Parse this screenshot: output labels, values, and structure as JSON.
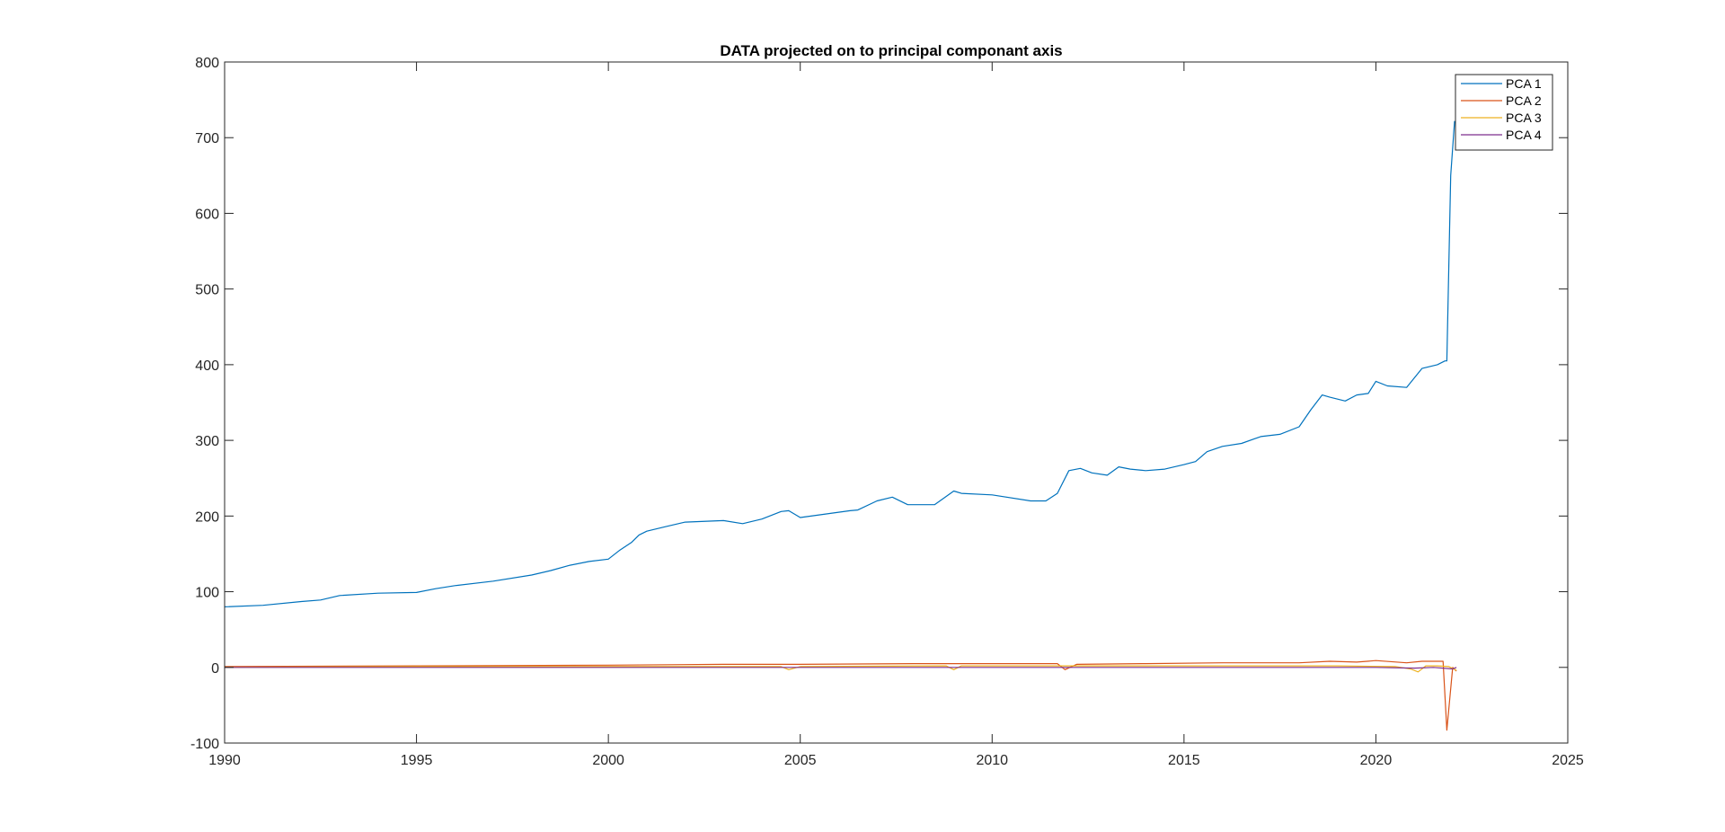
{
  "chart_data": {
    "type": "line",
    "title": "DATA projected on to principal componant axis",
    "xlabel": "",
    "ylabel": "",
    "xlim": [
      1990,
      2025
    ],
    "ylim": [
      -100,
      800
    ],
    "xticks": [
      1990,
      1995,
      2000,
      2005,
      2010,
      2015,
      2020,
      2025
    ],
    "yticks": [
      -100,
      0,
      100,
      200,
      300,
      400,
      500,
      600,
      700,
      800
    ],
    "xtick_labels": [
      "1990",
      "1995",
      "2000",
      "2005",
      "2010",
      "2015",
      "2020",
      "2025"
    ],
    "ytick_labels": [
      "-100",
      "0",
      "100",
      "200",
      "300",
      "400",
      "500",
      "600",
      "700",
      "800"
    ],
    "grid": false,
    "legend_position": "top-right",
    "series": [
      {
        "name": "PCA 1",
        "color": "#0072BD",
        "x": [
          1990.0,
          1991.0,
          1992.0,
          1992.5,
          1993.0,
          1994.0,
          1995.0,
          1995.5,
          1996.0,
          1997.0,
          1998.0,
          1998.5,
          1999.0,
          1999.5,
          2000.0,
          2000.3,
          2000.6,
          2000.8,
          2001.0,
          2001.5,
          2002.0,
          2003.0,
          2003.5,
          2004.0,
          2004.5,
          2004.7,
          2005.0,
          2006.0,
          2006.3,
          2006.5,
          2007.0,
          2007.4,
          2007.8,
          2008.5,
          2009.0,
          2009.2,
          2010.0,
          2011.0,
          2011.4,
          2011.7,
          2012.0,
          2012.3,
          2012.6,
          2013.0,
          2013.3,
          2013.6,
          2014.0,
          2014.5,
          2015.0,
          2015.3,
          2015.6,
          2016.0,
          2016.5,
          2017.0,
          2017.5,
          2018.0,
          2018.3,
          2018.6,
          2018.8,
          2019.2,
          2019.5,
          2019.8,
          2020.0,
          2020.3,
          2020.8,
          2021.2,
          2021.6,
          2021.8,
          2021.85,
          2021.95,
          2022.05
        ],
        "values": [
          80,
          82,
          87,
          89,
          95,
          98,
          99,
          104,
          108,
          114,
          122,
          128,
          135,
          140,
          143,
          155,
          165,
          175,
          180,
          186,
          192,
          194,
          190,
          196,
          206,
          207,
          198,
          205,
          207,
          208,
          220,
          225,
          215,
          215,
          233,
          230,
          228,
          220,
          220,
          230,
          260,
          263,
          257,
          254,
          265,
          262,
          260,
          262,
          268,
          272,
          285,
          292,
          296,
          305,
          308,
          318,
          340,
          360,
          357,
          352,
          360,
          362,
          378,
          372,
          370,
          395,
          400,
          405,
          405,
          650,
          722
        ]
      },
      {
        "name": "PCA 2",
        "color": "#D95319",
        "x": [
          1990.0,
          1995.0,
          2000.0,
          2003.0,
          2005.0,
          2008.0,
          2010.0,
          2011.7,
          2011.9,
          2012.2,
          2014.0,
          2016.0,
          2018.0,
          2018.8,
          2019.5,
          2020.0,
          2020.8,
          2021.2,
          2021.6,
          2021.75,
          2021.85,
          2022.0,
          2022.1
        ],
        "values": [
          1,
          2,
          3,
          4,
          4,
          5,
          5,
          5,
          -3,
          4,
          5,
          6,
          6,
          8,
          7,
          9,
          6,
          8,
          8,
          8,
          -83,
          0,
          -5
        ]
      },
      {
        "name": "PCA 3",
        "color": "#EDB120",
        "x": [
          1990.0,
          1995.0,
          2000.0,
          2004.5,
          2004.7,
          2005.0,
          2008.8,
          2009.0,
          2009.2,
          2012.0,
          2016.0,
          2019.0,
          2020.5,
          2020.9,
          2021.1,
          2021.3,
          2021.6,
          2021.9,
          2022.1
        ],
        "values": [
          0,
          1,
          1,
          1,
          -3,
          1,
          2,
          -3,
          2,
          2,
          2,
          2,
          1,
          -2,
          -6,
          2,
          2,
          1,
          -4
        ]
      },
      {
        "name": "PCA 4",
        "color": "#7E2F8E",
        "x": [
          1990.0,
          2000.0,
          2010.0,
          2015.0,
          2020.0,
          2021.0,
          2021.5,
          2022.0,
          2022.1
        ],
        "values": [
          0,
          0,
          0,
          0,
          0,
          -1,
          0,
          -2,
          0
        ]
      }
    ]
  }
}
